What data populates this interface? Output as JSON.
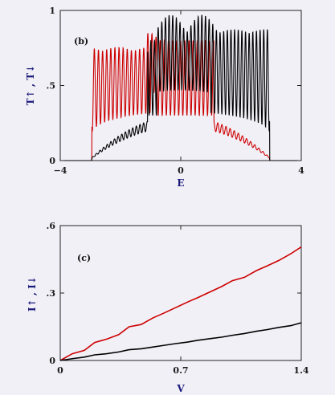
{
  "chart_data": [
    {
      "type": "line",
      "panel_label": "(b)",
      "xlabel": "E",
      "ylabel": "T↑ ,  T↓",
      "xlim": [
        -4,
        4
      ],
      "ylim": [
        0,
        1
      ],
      "x_ticks": [
        "−4",
        "0",
        "4"
      ],
      "y_ticks": [
        "0",
        ".5",
        "1"
      ],
      "grid": false,
      "series": [
        {
          "color": "#cc0000",
          "band_edges": [
            -2.95,
            2.95
          ],
          "dense_region": [
            -2.95,
            -0.8
          ],
          "plateau_level": 0.73
        },
        {
          "color": "#000000",
          "band_edges": [
            -2.95,
            2.95
          ],
          "dense_region": [
            -0.8,
            2.95
          ],
          "plateau_level": 0.85
        }
      ]
    },
    {
      "type": "line",
      "panel_label": "(c)",
      "xlabel": "V",
      "ylabel": "I↑ , I↓",
      "xlim": [
        0,
        1.4
      ],
      "ylim": [
        0,
        0.6
      ],
      "x_ticks": [
        "0",
        "0.7",
        "1.4"
      ],
      "y_ticks": [
        "0",
        ".3",
        ".6"
      ],
      "grid": false,
      "series": [
        {
          "color": "#cc0000",
          "x": [
            0,
            0.07,
            0.14,
            0.2,
            0.27,
            0.34,
            0.4,
            0.47,
            0.54,
            0.6,
            0.67,
            0.74,
            0.8,
            0.87,
            0.94,
            1.0,
            1.07,
            1.14,
            1.2,
            1.27,
            1.34,
            1.4
          ],
          "y": [
            0,
            0.03,
            0.045,
            0.08,
            0.095,
            0.115,
            0.15,
            0.16,
            0.19,
            0.21,
            0.235,
            0.26,
            0.28,
            0.305,
            0.33,
            0.355,
            0.37,
            0.4,
            0.42,
            0.445,
            0.475,
            0.505
          ]
        },
        {
          "color": "#000000",
          "x": [
            0,
            0.07,
            0.14,
            0.2,
            0.27,
            0.34,
            0.4,
            0.47,
            0.54,
            0.6,
            0.67,
            0.74,
            0.8,
            0.87,
            0.94,
            1.0,
            1.07,
            1.14,
            1.2,
            1.27,
            1.34,
            1.4
          ],
          "y": [
            0,
            0.008,
            0.015,
            0.025,
            0.03,
            0.038,
            0.048,
            0.052,
            0.06,
            0.067,
            0.075,
            0.082,
            0.09,
            0.097,
            0.104,
            0.112,
            0.12,
            0.13,
            0.137,
            0.147,
            0.155,
            0.168
          ]
        }
      ]
    }
  ]
}
